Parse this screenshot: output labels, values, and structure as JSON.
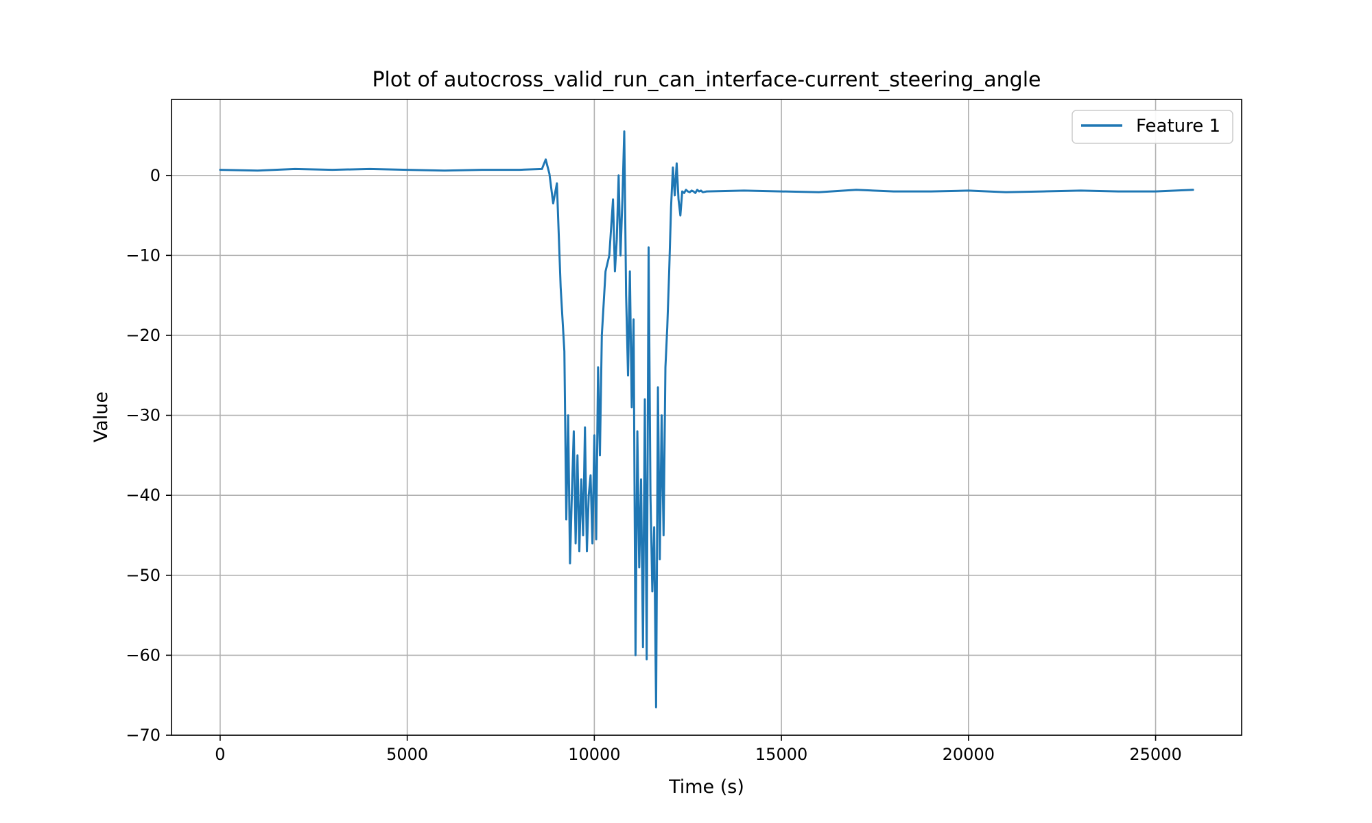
{
  "chart_data": {
    "type": "line",
    "title": "Plot of autocross_valid_run_can_interface-current_steering_angle",
    "xlabel": "Time (s)",
    "ylabel": "Value",
    "xlim": [
      -1300,
      27300
    ],
    "ylim": [
      -70,
      9.5
    ],
    "xticks": [
      0,
      5000,
      10000,
      15000,
      20000,
      25000
    ],
    "xtick_labels": [
      "0",
      "5000",
      "10000",
      "15000",
      "20000",
      "25000"
    ],
    "yticks": [
      0,
      -10,
      -20,
      -30,
      -40,
      -50,
      -60,
      -70
    ],
    "ytick_labels": [
      "0",
      "−10",
      "−20",
      "−30",
      "−40",
      "−50",
      "−60",
      "−70"
    ],
    "grid": true,
    "legend_position": "top-right",
    "colors": {
      "series": "#1f77b4",
      "grid": "#b0b0b0",
      "axes": "#000000"
    },
    "series": [
      {
        "name": "Feature 1",
        "x": [
          0,
          1000,
          2000,
          3000,
          4000,
          5000,
          6000,
          7000,
          8000,
          8600,
          8700,
          8800,
          8900,
          9000,
          9100,
          9200,
          9250,
          9300,
          9350,
          9400,
          9450,
          9500,
          9550,
          9600,
          9650,
          9700,
          9750,
          9800,
          9850,
          9900,
          9950,
          10000,
          10050,
          10100,
          10150,
          10200,
          10300,
          10400,
          10500,
          10550,
          10600,
          10650,
          10700,
          10750,
          10800,
          10850,
          10900,
          10950,
          11000,
          11050,
          11100,
          11150,
          11200,
          11250,
          11300,
          11350,
          11400,
          11450,
          11500,
          11550,
          11600,
          11650,
          11700,
          11750,
          11800,
          11850,
          11900,
          11950,
          12000,
          12050,
          12100,
          12150,
          12200,
          12250,
          12300,
          12350,
          12400,
          12450,
          12500,
          12550,
          12600,
          12650,
          12700,
          12750,
          12800,
          12850,
          12900,
          13000,
          14000,
          15000,
          16000,
          17000,
          18000,
          19000,
          20000,
          21000,
          22000,
          23000,
          24000,
          25000,
          26000
        ],
        "y": [
          0.7,
          0.6,
          0.8,
          0.7,
          0.8,
          0.7,
          0.6,
          0.7,
          0.7,
          0.8,
          2.0,
          0.2,
          -3.5,
          -1.0,
          -14.0,
          -22.0,
          -43.0,
          -30.0,
          -48.5,
          -40.0,
          -32.0,
          -46.0,
          -35.0,
          -47.0,
          -38.0,
          -45.0,
          -31.5,
          -47.0,
          -40.0,
          -37.5,
          -46.0,
          -32.5,
          -45.5,
          -24.0,
          -35.0,
          -20.0,
          -12.0,
          -10.0,
          -3.0,
          -12.0,
          -8.0,
          0.0,
          -10.0,
          -3.0,
          5.5,
          -15.0,
          -25.0,
          -12.0,
          -29.0,
          -18.0,
          -60.0,
          -32.0,
          -49.0,
          -38.0,
          -59.0,
          -28.0,
          -60.5,
          -9.0,
          -40.0,
          -52.0,
          -44.0,
          -66.5,
          -26.5,
          -48.0,
          -30.0,
          -45.0,
          -24.0,
          -19.0,
          -12.0,
          -4.0,
          1.0,
          -2.5,
          1.5,
          -3.0,
          -5.0,
          -2.0,
          -2.2,
          -1.8,
          -2.0,
          -2.1,
          -1.9,
          -2.0,
          -2.2,
          -1.8,
          -2.0,
          -1.9,
          -2.1,
          -2.0,
          -1.9,
          -2.0,
          -2.1,
          -1.8,
          -2.0,
          -2.0,
          -1.9,
          -2.1,
          -2.0,
          -1.9,
          -2.0,
          -2.0,
          -1.8
        ]
      }
    ]
  }
}
